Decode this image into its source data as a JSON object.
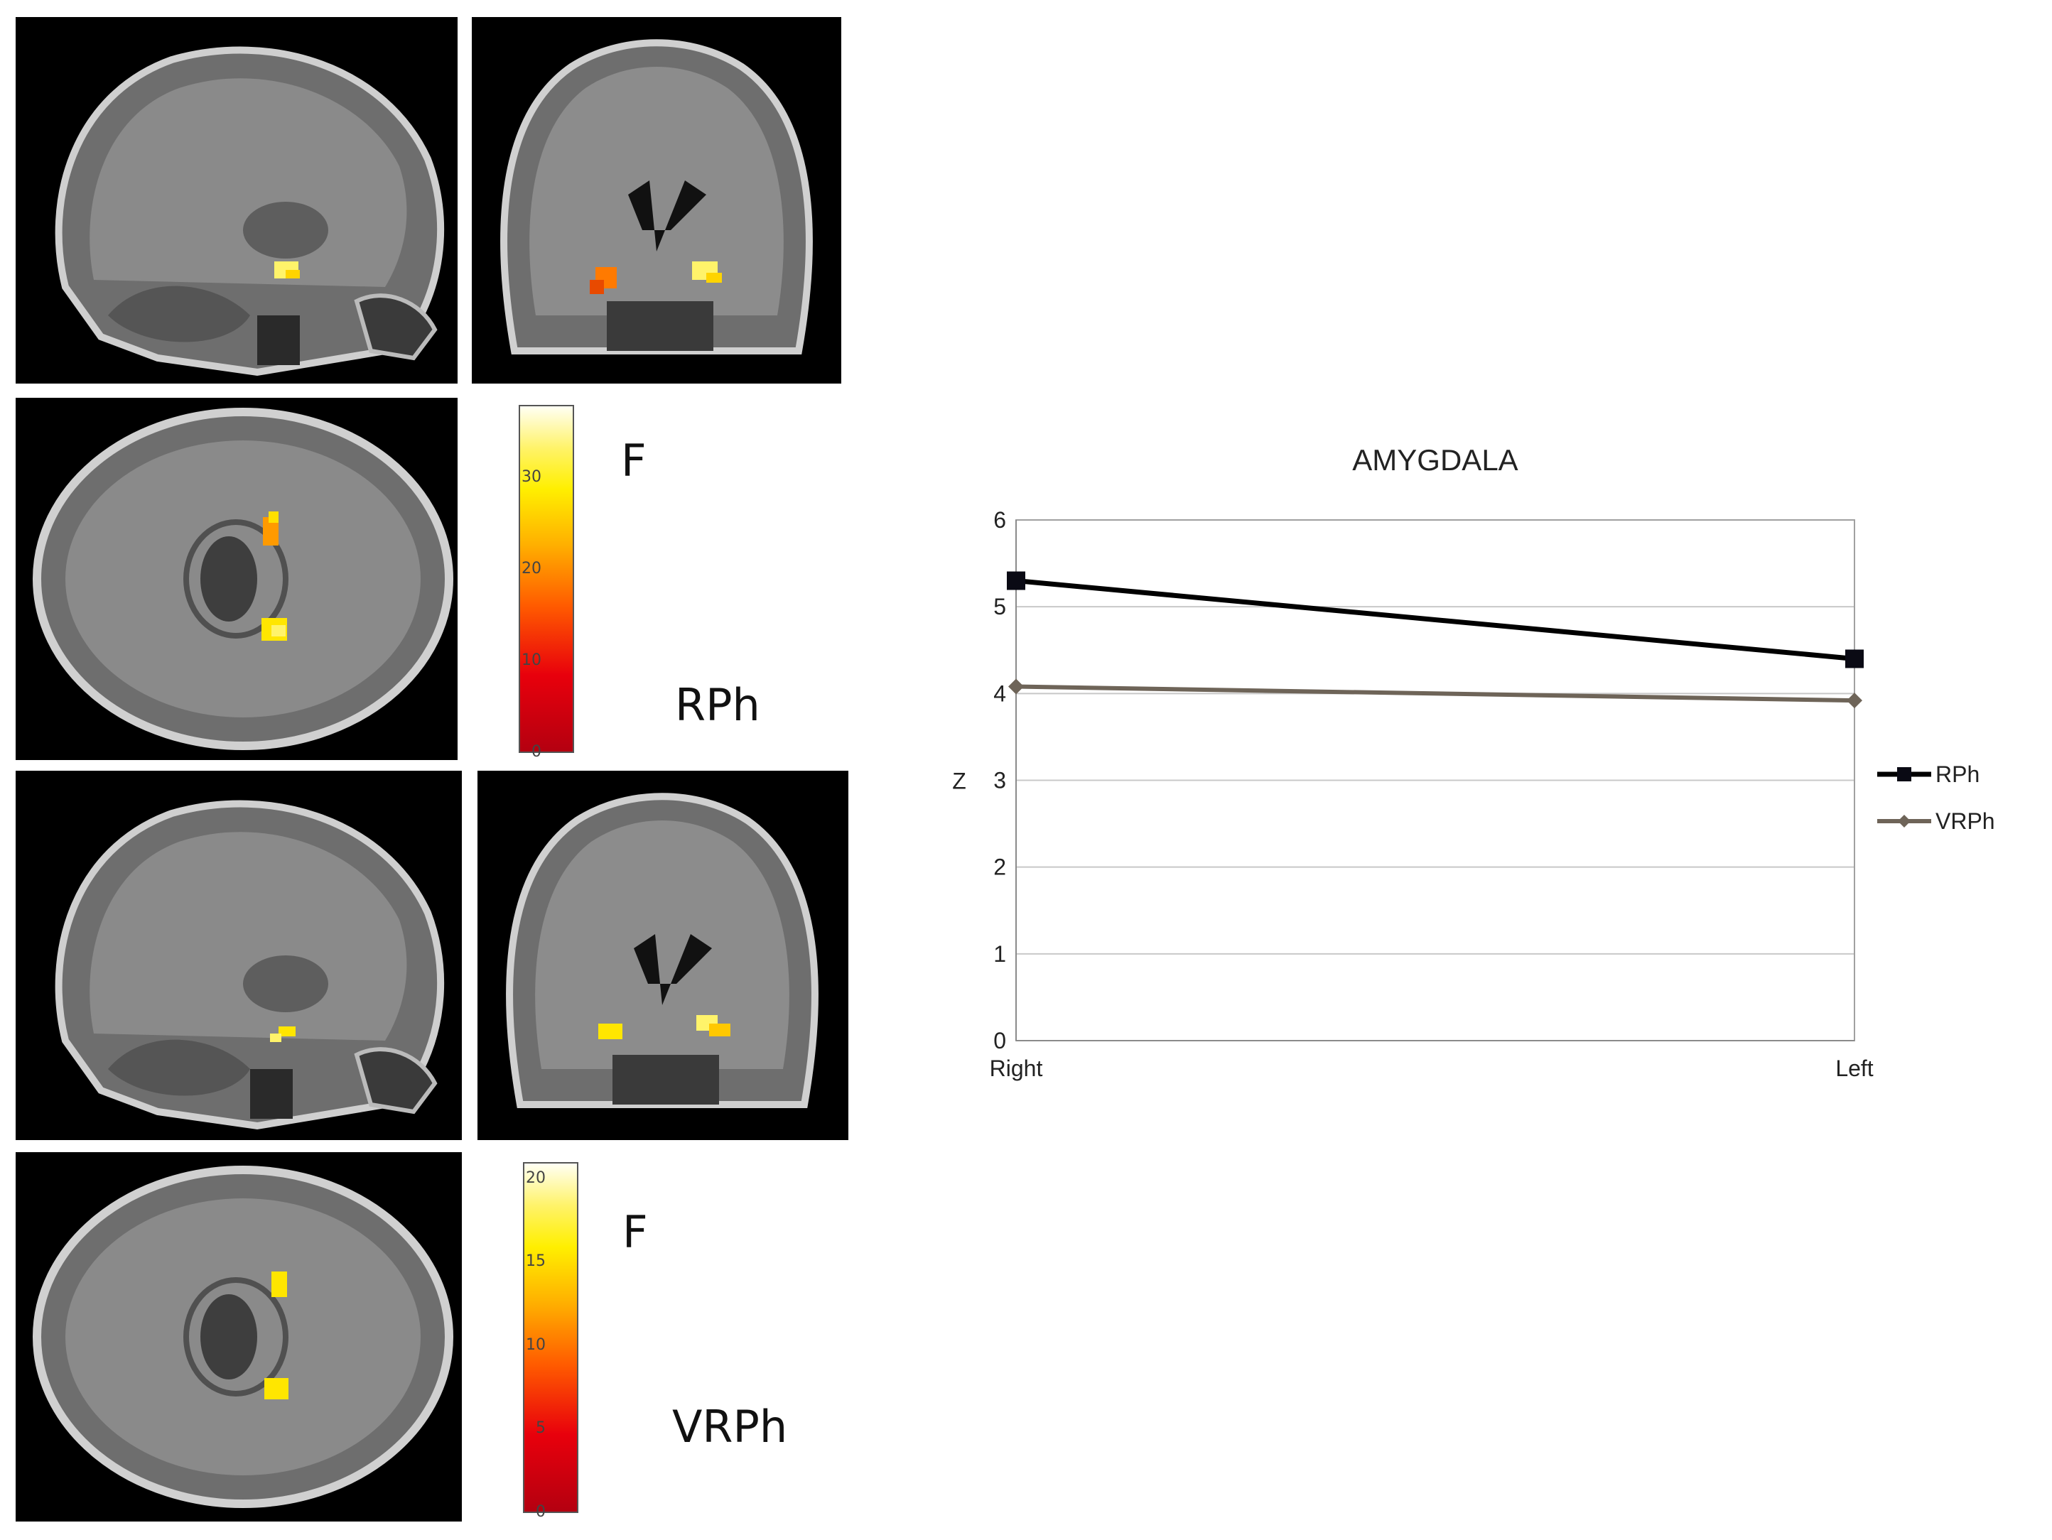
{
  "panels": {
    "rph_colorbar": {
      "ticks": [
        "0",
        "10",
        "20",
        "30"
      ],
      "max": 38
    },
    "rph_stat_label": "F",
    "rph_group_label": "RPh",
    "vrph_colorbar": {
      "ticks": [
        "0",
        "5",
        "10",
        "15",
        "20"
      ],
      "max": 21
    },
    "vrph_stat_label": "F",
    "vrph_group_label": "VRPh"
  },
  "chart_data": {
    "type": "line",
    "title": "AMYGDALA",
    "xlabel": "",
    "ylabel": "Z",
    "categories": [
      "Right",
      "Left"
    ],
    "ylim": [
      0,
      6
    ],
    "yticks": [
      "0",
      "1",
      "2",
      "3",
      "4",
      "5",
      "6"
    ],
    "grid": true,
    "legend_position": "right",
    "series": [
      {
        "name": "RPh",
        "values": [
          5.3,
          4.4
        ],
        "color": "#000000",
        "marker": "square"
      },
      {
        "name": "VRPh",
        "values": [
          4.08,
          3.92
        ],
        "color": "#6e6458",
        "marker": "diamond"
      }
    ]
  }
}
